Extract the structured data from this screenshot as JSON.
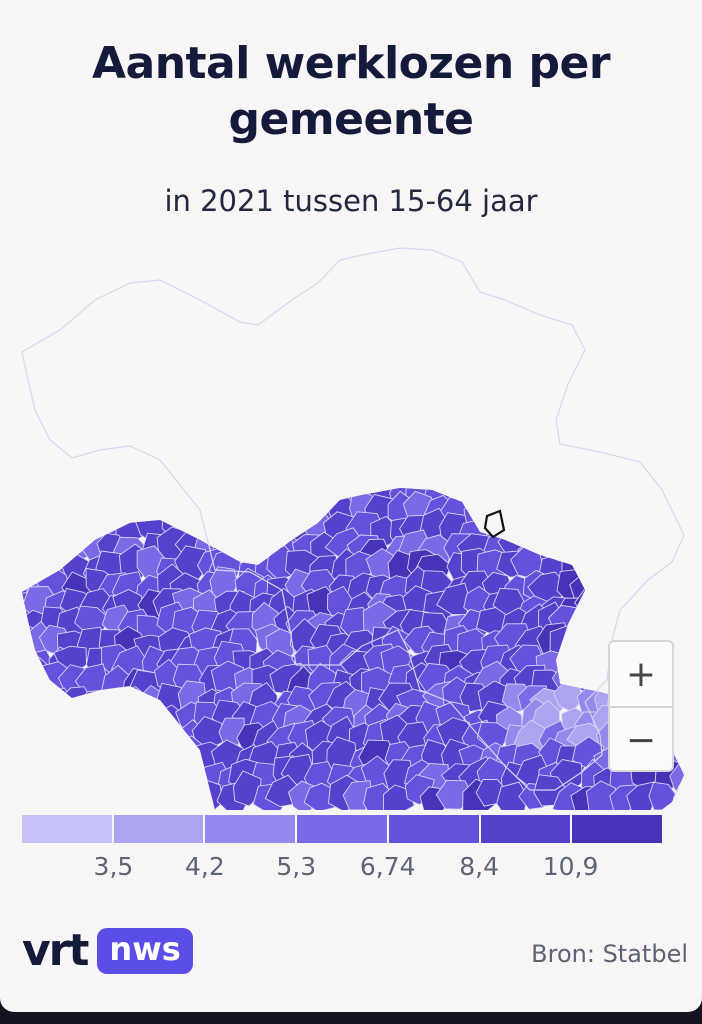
{
  "title": "Aantal werklozen per gemeente",
  "subtitle": "in 2021 tussen 15-64 jaar",
  "zoom": {
    "in_label": "+",
    "out_label": "−"
  },
  "legend": {
    "colors": [
      "#c6c2f6",
      "#aca4f0",
      "#9489ec",
      "#7a6ae6",
      "#6451dc",
      "#5542cc",
      "#4733b8"
    ],
    "labels": [
      "3,5",
      "4,2",
      "5,3",
      "6,74",
      "8,4",
      "10,9"
    ]
  },
  "brand": {
    "vrt": "vrt",
    "nws": "nws"
  },
  "source": "Bron: Statbel",
  "colors": {
    "title": "#141a3a",
    "border": "#d8d4f2",
    "highlight": "#111111",
    "background": "#f8f5f6"
  },
  "map_data": {
    "type": "choropleth",
    "region": "Belgium",
    "unit_level": "gemeente",
    "classes": [
      {
        "max": 3.5,
        "color": "#c6c2f6"
      },
      {
        "min": 3.5,
        "max": 4.2,
        "color": "#aca4f0"
      },
      {
        "min": 4.2,
        "max": 5.3,
        "color": "#9489ec"
      },
      {
        "min": 5.3,
        "max": 6.74,
        "color": "#7a6ae6"
      },
      {
        "min": 6.74,
        "max": 8.4,
        "color": "#6451dc"
      },
      {
        "min": 8.4,
        "max": 10.9,
        "color": "#5542cc"
      },
      {
        "min": 10.9,
        "color": "#4733b8"
      }
    ]
  }
}
